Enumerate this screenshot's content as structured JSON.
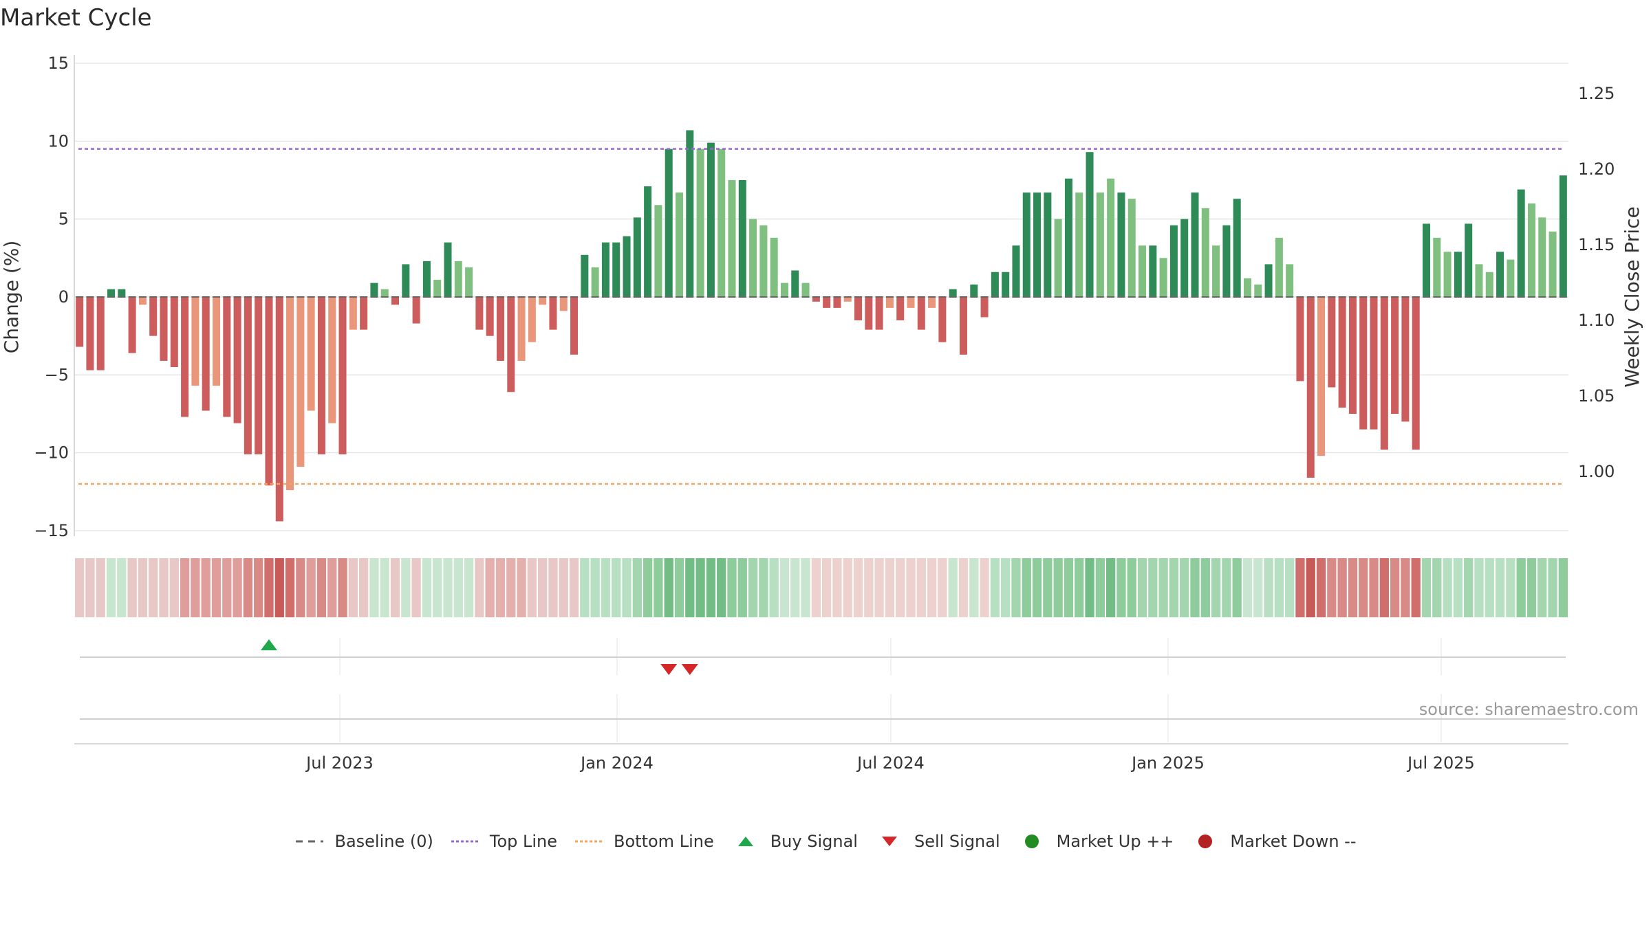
{
  "title": "Market Cycle",
  "source": "source: sharemaestro.com",
  "colors": {
    "up_dark": "#2e8b57",
    "up_light": "#7fbf7f",
    "down_dark": "#cd5c5c",
    "down_light": "#e9967a",
    "top_line": "#9966cc",
    "bottom_line": "#f4a460",
    "buy": "#1fa84a",
    "sell": "#d62728",
    "market_up": "#228b22",
    "market_down": "#b22222"
  },
  "chart_data": {
    "type": "bar",
    "ylabel_left": "Change (%)",
    "ylabel_right": "Weekly Close Price",
    "y_ticks_left": [
      15,
      10,
      5,
      0,
      -5,
      -10,
      -15
    ],
    "y_ticks_left_labels": [
      "15",
      "10",
      "5",
      "0",
      "−5",
      "−10",
      "−15"
    ],
    "y_ticks_right": [
      1.25,
      1.2,
      1.15,
      1.1,
      1.05,
      1.0
    ],
    "y_ticks_right_labels": [
      "1.25",
      "1.20",
      "1.15",
      "1.10",
      "1.05",
      "1.00"
    ],
    "ylim_left": [
      -15.5,
      15
    ],
    "x_ticks": [
      "Jul 2023",
      "Jan 2024",
      "Jul 2024",
      "Jan 2025",
      "Jul 2025"
    ],
    "top_line": 9.5,
    "bottom_line": -12,
    "values": [
      -3.2,
      -4.7,
      -4.7,
      0.5,
      0.5,
      -3.6,
      -0.5,
      -2.5,
      -4.1,
      -4.5,
      -7.7,
      -5.7,
      -7.3,
      -5.7,
      -7.7,
      -8.1,
      -10.1,
      -10.1,
      -12.1,
      -14.4,
      -12.4,
      -10.9,
      -7.3,
      -10.1,
      -8.1,
      -10.1,
      -2.1,
      -2.1,
      0.9,
      0.5,
      -0.5,
      2.1,
      -1.7,
      2.3,
      1.1,
      3.5,
      2.3,
      1.9,
      -2.1,
      -2.5,
      -4.1,
      -6.1,
      -4.1,
      -2.9,
      -0.5,
      -2.1,
      -0.9,
      -3.7,
      2.7,
      1.9,
      3.5,
      3.5,
      3.9,
      5.1,
      7.1,
      5.9,
      9.5,
      6.7,
      10.7,
      9.5,
      9.9,
      9.5,
      7.5,
      7.5,
      5.0,
      4.6,
      3.8,
      0.9,
      1.7,
      0.9,
      -0.3,
      -0.7,
      -0.7,
      -0.3,
      -1.5,
      -2.1,
      -2.1,
      -0.7,
      -1.5,
      -0.7,
      -2.1,
      -0.7,
      -2.9,
      0.5,
      -3.7,
      0.8,
      -1.3,
      1.6,
      1.6,
      3.3,
      6.7,
      6.7,
      6.7,
      5.0,
      7.6,
      6.7,
      9.3,
      6.7,
      7.6,
      6.7,
      6.3,
      3.3,
      3.3,
      2.5,
      4.6,
      5.0,
      6.7,
      5.7,
      3.3,
      4.6,
      6.3,
      1.2,
      0.8,
      2.1,
      3.8,
      2.1,
      -5.4,
      -11.6,
      -10.2,
      -5.8,
      -7.1,
      -7.5,
      -8.5,
      -8.5,
      -9.8,
      -7.5,
      -8.0,
      -9.8,
      4.7,
      3.8,
      2.9,
      2.9,
      4.7,
      2.1,
      1.6,
      2.9,
      2.4,
      6.9,
      6.0,
      5.1,
      4.2,
      7.8
    ],
    "bar_shade": [
      "d",
      "d",
      "d",
      "d",
      "d",
      "d",
      "l",
      "d",
      "d",
      "d",
      "d",
      "l",
      "d",
      "l",
      "d",
      "d",
      "d",
      "d",
      "d",
      "d",
      "l",
      "l",
      "l",
      "d",
      "l",
      "d",
      "l",
      "d",
      "d",
      "l",
      "d",
      "d",
      "d",
      "d",
      "l",
      "d",
      "l",
      "l",
      "d",
      "d",
      "d",
      "d",
      "l",
      "l",
      "l",
      "d",
      "l",
      "d",
      "d",
      "l",
      "d",
      "d",
      "d",
      "d",
      "d",
      "l",
      "d",
      "l",
      "d",
      "l",
      "d",
      "l",
      "l",
      "d",
      "l",
      "l",
      "l",
      "l",
      "d",
      "l",
      "d",
      "d",
      "d",
      "l",
      "d",
      "d",
      "d",
      "l",
      "d",
      "l",
      "d",
      "l",
      "d",
      "d",
      "d",
      "d",
      "d",
      "d",
      "d",
      "d",
      "d",
      "d",
      "d",
      "l",
      "d",
      "l",
      "d",
      "l",
      "l",
      "d",
      "l",
      "l",
      "d",
      "l",
      "d",
      "d",
      "d",
      "l",
      "l",
      "d",
      "d",
      "l",
      "l",
      "d",
      "l",
      "l",
      "d",
      "d",
      "l",
      "d",
      "d",
      "d",
      "d",
      "d",
      "d",
      "d",
      "d",
      "d",
      "d",
      "l",
      "l",
      "d",
      "d",
      "l",
      "l",
      "d",
      "l",
      "d",
      "l",
      "l",
      "l",
      "d"
    ],
    "heat_colors": [
      "#e8c8c6",
      "#e8c8c6",
      "#e8c8c6",
      "#c8e6cf",
      "#c8e6cf",
      "#e8c8c6",
      "#e8c8c6",
      "#e8c8c6",
      "#e8c8c6",
      "#e8c8c6",
      "#df9e9c",
      "#df9e9c",
      "#df9e9c",
      "#df9e9c",
      "#df9e9c",
      "#df9e9c",
      "#d88a87",
      "#d88a87",
      "#cf6e6b",
      "#c85a57",
      "#cf6e6b",
      "#d88a87",
      "#df9e9c",
      "#d88a87",
      "#df9e9c",
      "#d88a87",
      "#e8c8c6",
      "#e8c8c6",
      "#c8e6cf",
      "#c8e6cf",
      "#e8c8c6",
      "#c8e6cf",
      "#e8c8c6",
      "#c8e6cf",
      "#c8e6cf",
      "#c8e6cf",
      "#c8e6cf",
      "#c8e6cf",
      "#e8c8c6",
      "#e3b0ae",
      "#e3b0ae",
      "#e3b0ae",
      "#e3b0ae",
      "#e8c8c6",
      "#e8c8c6",
      "#e8c8c6",
      "#e8c8c6",
      "#e8c8c6",
      "#b7dfc1",
      "#b7dfc1",
      "#b7dfc1",
      "#b7dfc1",
      "#b7dfc1",
      "#a3d6ae",
      "#8fcc9c",
      "#8fcc9c",
      "#72bd85",
      "#8fcc9c",
      "#72bd85",
      "#72bd85",
      "#72bd85",
      "#72bd85",
      "#8fcc9c",
      "#8fcc9c",
      "#a3d6ae",
      "#a3d6ae",
      "#b7dfc1",
      "#c8e6cf",
      "#c8e6cf",
      "#c8e6cf",
      "#ecd1cf",
      "#ecd1cf",
      "#ecd1cf",
      "#ecd1cf",
      "#ecd1cf",
      "#ecd1cf",
      "#ecd1cf",
      "#ecd1cf",
      "#ecd1cf",
      "#ecd1cf",
      "#ecd1cf",
      "#ecd1cf",
      "#ecd1cf",
      "#c8e6cf",
      "#ecd1cf",
      "#c8e6cf",
      "#ecd1cf",
      "#b7dfc1",
      "#b7dfc1",
      "#a3d6ae",
      "#8fcc9c",
      "#8fcc9c",
      "#8fcc9c",
      "#8fcc9c",
      "#8fcc9c",
      "#8fcc9c",
      "#72bd85",
      "#8fcc9c",
      "#72bd85",
      "#8fcc9c",
      "#8fcc9c",
      "#a3d6ae",
      "#a3d6ae",
      "#a3d6ae",
      "#a3d6ae",
      "#a3d6ae",
      "#8fcc9c",
      "#8fcc9c",
      "#a3d6ae",
      "#a3d6ae",
      "#8fcc9c",
      "#c8e6cf",
      "#c8e6cf",
      "#b7dfc1",
      "#b7dfc1",
      "#b7dfc1",
      "#cf6e6b",
      "#c85a57",
      "#cf6e6b",
      "#d88a87",
      "#d88a87",
      "#d88a87",
      "#d88a87",
      "#d88a87",
      "#cf6e6b",
      "#d88a87",
      "#d88a87",
      "#cf6e6b",
      "#a3d6ae",
      "#a3d6ae",
      "#b7dfc1",
      "#b7dfc1",
      "#a3d6ae",
      "#b7dfc1",
      "#b7dfc1",
      "#b7dfc1",
      "#b7dfc1",
      "#8fcc9c",
      "#8fcc9c",
      "#a3d6ae",
      "#a3d6ae",
      "#8fcc9c"
    ],
    "buy_signals": [
      18
    ],
    "sell_signals": [
      56,
      58
    ]
  },
  "legend": [
    {
      "label": "Baseline (0)",
      "symbol": "dash",
      "color": "#666666"
    },
    {
      "label": "Top Line",
      "symbol": "dot",
      "color": "#9966cc"
    },
    {
      "label": "Bottom Line",
      "symbol": "dot",
      "color": "#f4a460"
    },
    {
      "label": "Buy Signal",
      "symbol": "tri-up",
      "color": "#1fa84a"
    },
    {
      "label": "Sell Signal",
      "symbol": "tri-down",
      "color": "#d62728"
    },
    {
      "label": "Market Up ++",
      "symbol": "circle",
      "color": "#228b22"
    },
    {
      "label": "Market Down --",
      "symbol": "circle",
      "color": "#b22222"
    }
  ]
}
